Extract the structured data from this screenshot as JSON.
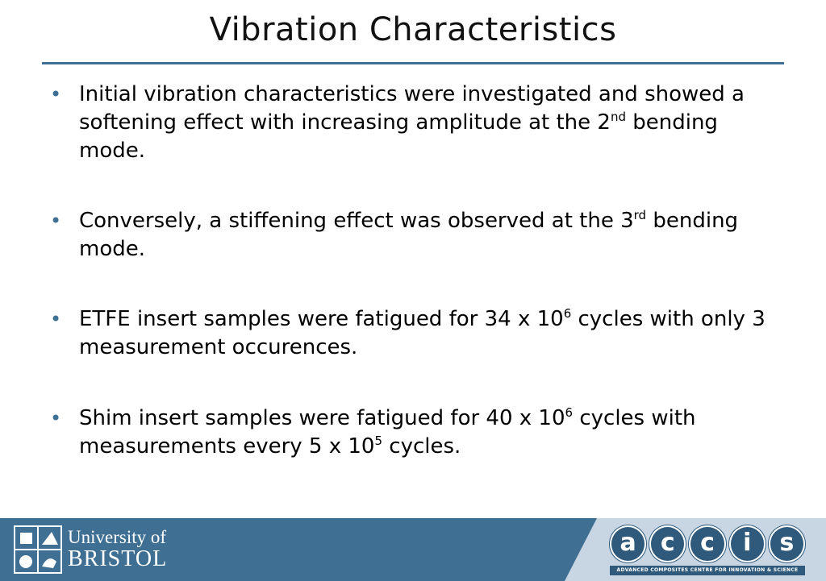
{
  "slide": {
    "title": "Vibration Characteristics",
    "bullets": [
      {
        "segments": [
          {
            "text": "Initial vibration characteristics were investigated and showed a softening effect with increasing amplitude at the 2"
          },
          {
            "text": "nd",
            "sup": true
          },
          {
            "text": " bending mode."
          }
        ]
      },
      {
        "segments": [
          {
            "text": "Conversely, a stiffening effect was observed at the 3"
          },
          {
            "text": "rd",
            "sup": true
          },
          {
            "text": " bending mode."
          }
        ]
      },
      {
        "segments": [
          {
            "text": "ETFE insert samples were fatigued for 34 x 10"
          },
          {
            "text": "6",
            "sup": true
          },
          {
            "text": " cycles with only 3 measurement occurences."
          }
        ]
      },
      {
        "segments": [
          {
            "text": "Shim insert samples were fatigued for 40 x 10"
          },
          {
            "text": "6",
            "sup": true
          },
          {
            "text": " cycles with measurements every 5 x 10"
          },
          {
            "text": "5",
            "sup": true
          },
          {
            "text": " cycles."
          }
        ]
      }
    ]
  },
  "footer": {
    "university_line1": "University of",
    "university_line2": "BRISTOL",
    "accis_letters": [
      "a",
      "c",
      "c",
      "i",
      "s"
    ],
    "accis_tagline": "ADVANCED COMPOSITES CENTRE FOR INNOVATION & SCIENCE",
    "bar_color": "#3f6f93",
    "panel_color": "#c8d5e2"
  },
  "colors": {
    "accent": "#3f6f93",
    "accis_blue": "#2f5a7c"
  }
}
